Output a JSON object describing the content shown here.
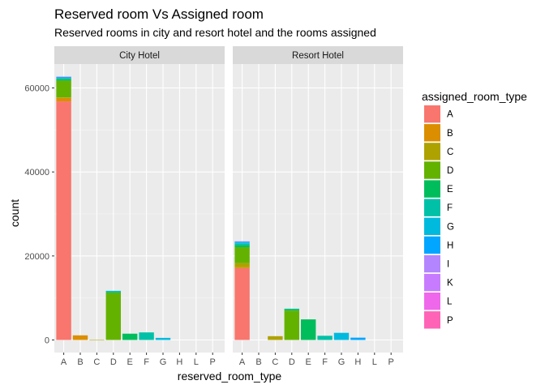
{
  "chart_data": {
    "type": "bar",
    "stacked": true,
    "faceted": true,
    "title": "Reserved room Vs Assigned room",
    "subtitle": "Reserved rooms in city and resort hotel and the rooms assigned",
    "xlabel": "reserved_room_type",
    "ylabel": "count",
    "ylim": [
      0,
      66000
    ],
    "yticks": [
      0,
      20000,
      40000,
      60000
    ],
    "ytick_labels": [
      "0",
      "20000",
      "40000",
      "60000"
    ],
    "grid": true,
    "legend": {
      "title": "assigned_room_type",
      "placement": "right",
      "entries": [
        {
          "name": "A",
          "color": "#F8766D"
        },
        {
          "name": "B",
          "color": "#DB8E00"
        },
        {
          "name": "C",
          "color": "#AEA200"
        },
        {
          "name": "D",
          "color": "#64B200"
        },
        {
          "name": "E",
          "color": "#00BD5C"
        },
        {
          "name": "F",
          "color": "#00C1A7"
        },
        {
          "name": "G",
          "color": "#00BADE"
        },
        {
          "name": "H",
          "color": "#00A6FF"
        },
        {
          "name": "I",
          "color": "#B385FF"
        },
        {
          "name": "K",
          "color": "#C77CFF"
        },
        {
          "name": "L",
          "color": "#EF67EB"
        },
        {
          "name": "P",
          "color": "#FF63B6"
        }
      ]
    },
    "categories": [
      "A",
      "B",
      "C",
      "D",
      "E",
      "F",
      "G",
      "H",
      "L",
      "P"
    ],
    "panels": [
      {
        "name": "City Hotel",
        "bars": [
          {
            "category": "A",
            "segments": [
              {
                "type": "A",
                "value": 56800
              },
              {
                "type": "B",
                "value": 850
              },
              {
                "type": "C",
                "value": 100
              },
              {
                "type": "D",
                "value": 4000
              },
              {
                "type": "E",
                "value": 300
              },
              {
                "type": "F",
                "value": 250
              },
              {
                "type": "G",
                "value": 200
              },
              {
                "type": "H",
                "value": 100
              },
              {
                "type": "K",
                "value": 100
              }
            ]
          },
          {
            "category": "B",
            "segments": [
              {
                "type": "B",
                "value": 1100
              }
            ]
          },
          {
            "category": "C",
            "segments": [
              {
                "type": "C",
                "value": 10
              }
            ]
          },
          {
            "category": "D",
            "segments": [
              {
                "type": "D",
                "value": 11200
              },
              {
                "type": "E",
                "value": 200
              },
              {
                "type": "F",
                "value": 200
              },
              {
                "type": "G",
                "value": 100
              }
            ]
          },
          {
            "category": "E",
            "segments": [
              {
                "type": "E",
                "value": 1500
              }
            ]
          },
          {
            "category": "F",
            "segments": [
              {
                "type": "F",
                "value": 1800
              }
            ]
          },
          {
            "category": "G",
            "segments": [
              {
                "type": "G",
                "value": 500
              }
            ]
          },
          {
            "category": "H",
            "segments": []
          },
          {
            "category": "L",
            "segments": []
          },
          {
            "category": "P",
            "segments": []
          }
        ]
      },
      {
        "name": "Resort Hotel",
        "bars": [
          {
            "category": "A",
            "segments": [
              {
                "type": "A",
                "value": 17100
              },
              {
                "type": "B",
                "value": 200
              },
              {
                "type": "C",
                "value": 1000
              },
              {
                "type": "D",
                "value": 3800
              },
              {
                "type": "E",
                "value": 500
              },
              {
                "type": "F",
                "value": 300
              },
              {
                "type": "G",
                "value": 300
              },
              {
                "type": "H",
                "value": 200
              },
              {
                "type": "I",
                "value": 100
              }
            ]
          },
          {
            "category": "B",
            "segments": []
          },
          {
            "category": "C",
            "segments": [
              {
                "type": "C",
                "value": 900
              }
            ]
          },
          {
            "category": "D",
            "segments": [
              {
                "type": "D",
                "value": 7000
              },
              {
                "type": "E",
                "value": 300
              },
              {
                "type": "F",
                "value": 150
              }
            ]
          },
          {
            "category": "E",
            "segments": [
              {
                "type": "E",
                "value": 4900
              }
            ]
          },
          {
            "category": "F",
            "segments": [
              {
                "type": "F",
                "value": 1000
              }
            ]
          },
          {
            "category": "G",
            "segments": [
              {
                "type": "G",
                "value": 1700
              }
            ]
          },
          {
            "category": "H",
            "segments": [
              {
                "type": "H",
                "value": 550
              }
            ]
          },
          {
            "category": "L",
            "segments": []
          },
          {
            "category": "P",
            "segments": []
          }
        ]
      }
    ]
  }
}
